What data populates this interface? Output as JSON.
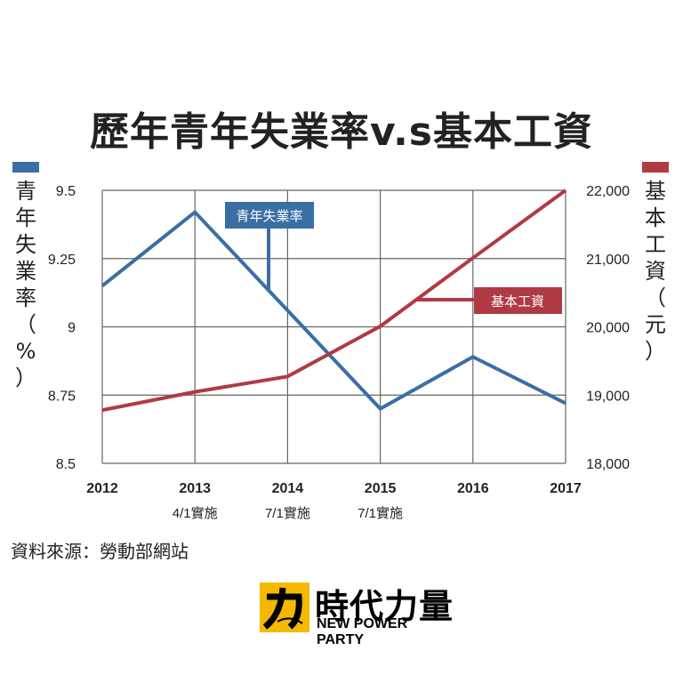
{
  "chart_data": {
    "type": "line",
    "title": "歷年青年失業率v.s基本工資",
    "categories": [
      "2012",
      "2013",
      "2014",
      "2015",
      "2016",
      "2017"
    ],
    "sublabels": [
      "",
      "4/1實施",
      "7/1實施",
      "7/1實施",
      "",
      ""
    ],
    "y_left": {
      "label": "青年失業率（%）",
      "ticks": [
        "9.5",
        "9.25",
        "9",
        "8.75",
        "8.5"
      ],
      "range": [
        8.5,
        9.5
      ]
    },
    "y_right": {
      "label": "基本工資（元）",
      "ticks": [
        "22,000",
        "21,000",
        "20,000",
        "19,000",
        "18,000"
      ],
      "range": [
        18000,
        22000
      ]
    },
    "series": [
      {
        "name": "青年失業率",
        "axis": "left",
        "color": "#3a6fa5",
        "values": [
          9.15,
          9.42,
          9.06,
          8.7,
          8.89,
          8.72
        ]
      },
      {
        "name": "基本工資",
        "axis": "right",
        "color": "#b03a44",
        "values": [
          18780,
          19047,
          19273,
          20008,
          21009,
          22000
        ]
      }
    ],
    "grid": true
  },
  "left_axis_title_chars": [
    "青",
    "年",
    "失",
    "業",
    "率",
    "（",
    "%",
    "）"
  ],
  "right_axis_title_chars": [
    "基",
    "本",
    "工",
    "資",
    "（",
    "元",
    "）"
  ],
  "source": "資料來源：勞動部網站",
  "logo": {
    "cn": "時代力量",
    "en": "NEW POWER PARTY"
  }
}
